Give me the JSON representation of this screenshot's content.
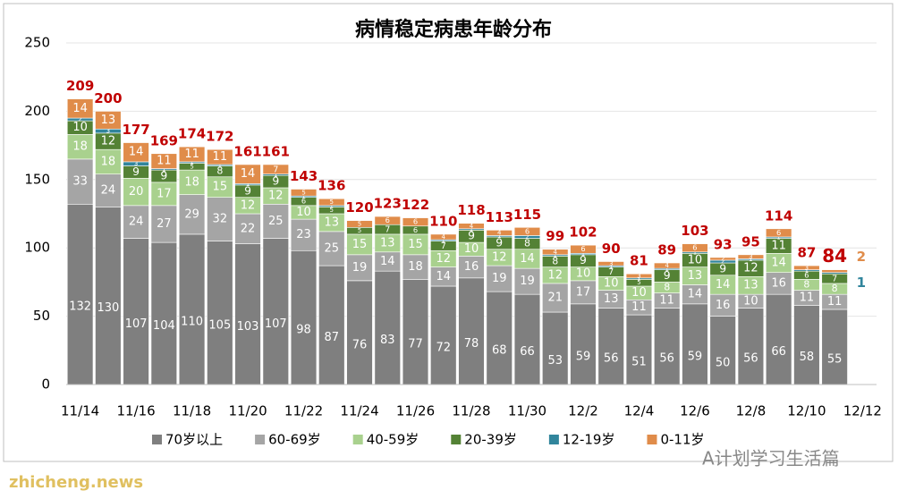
{
  "chart_data": {
    "type": "stacked_bar",
    "title": "病情稳定病患年龄分布",
    "categories": [
      "11/14",
      null,
      "11/16",
      null,
      "11/18",
      null,
      "11/20",
      null,
      "11/22",
      null,
      "11/24",
      null,
      "11/26",
      null,
      "11/28",
      null,
      "11/30",
      null,
      "12/2",
      null,
      "12/4",
      null,
      "12/6",
      null,
      "12/8",
      null,
      "12/10",
      null,
      "12/12"
    ],
    "series": [
      {
        "name": "70岁以上",
        "color": "#7f7f7f",
        "values": [
          132,
          130,
          107,
          104,
          110,
          105,
          103,
          107,
          98,
          87,
          76,
          83,
          77,
          72,
          78,
          68,
          66,
          53,
          59,
          56,
          51,
          56,
          59,
          50,
          56,
          66,
          58,
          55,
          null
        ]
      },
      {
        "name": "60-69岁",
        "color": "#a5a5a5",
        "values": [
          33,
          24,
          24,
          27,
          29,
          32,
          22,
          25,
          23,
          25,
          19,
          14,
          18,
          14,
          16,
          19,
          19,
          21,
          17,
          13,
          11,
          11,
          14,
          16,
          10,
          16,
          11,
          11,
          null
        ]
      },
      {
        "name": "40-59岁",
        "color": "#a9d18e",
        "values": [
          18,
          18,
          20,
          17,
          18,
          15,
          12,
          12,
          10,
          13,
          15,
          13,
          15,
          12,
          10,
          12,
          14,
          12,
          10,
          10,
          10,
          8,
          13,
          14,
          13,
          14,
          8,
          8,
          null
        ]
      },
      {
        "name": "20-39岁",
        "color": "#548235",
        "values": [
          10,
          12,
          9,
          9,
          5,
          8,
          9,
          9,
          6,
          5,
          5,
          7,
          6,
          7,
          9,
          9,
          8,
          8,
          9,
          7,
          5,
          9,
          10,
          9,
          12,
          11,
          6,
          7,
          null
        ]
      },
      {
        "name": "12-19岁",
        "color": "#31859c",
        "values": [
          2,
          3,
          3,
          1,
          1,
          1,
          1,
          1,
          1,
          1,
          0,
          0,
          0,
          1,
          1,
          1,
          2,
          1,
          1,
          1,
          1,
          1,
          1,
          2,
          1,
          1,
          1,
          1,
          null
        ]
      },
      {
        "name": "0-11岁",
        "color": "#e08c4a",
        "values": [
          14,
          13,
          14,
          11,
          11,
          11,
          14,
          7,
          5,
          5,
          5,
          6,
          6,
          4,
          4,
          4,
          6,
          4,
          6,
          3,
          3,
          4,
          6,
          2,
          3,
          6,
          3,
          2,
          null
        ]
      }
    ],
    "totals": [
      209,
      200,
      177,
      169,
      174,
      172,
      161,
      161,
      143,
      136,
      120,
      123,
      122,
      110,
      118,
      113,
      115,
      99,
      102,
      90,
      81,
      89,
      103,
      93,
      95,
      114,
      87,
      84,
      null
    ],
    "total_color": "#c00000",
    "ylim": [
      0,
      250
    ],
    "yticks": [
      0,
      50,
      100,
      150,
      200,
      250
    ],
    "grid": true,
    "legend": "bottom",
    "watermark": "zhicheng.news",
    "source": "A计划学习生活篇"
  }
}
